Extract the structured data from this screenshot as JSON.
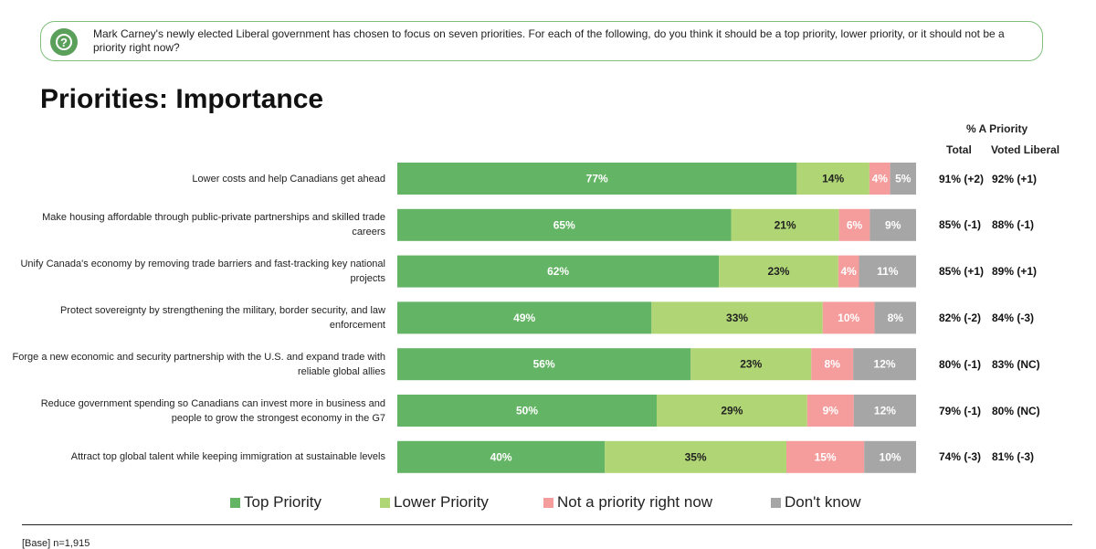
{
  "question": {
    "text": "Mark Carney's newly elected Liberal government has chosen to focus on seven priorities. For each of the following, do you think it should be a top priority, lower priority, or it should not be a priority right now?",
    "icon": "question-icon"
  },
  "colors": {
    "top": "#63b464",
    "lower": "#afd574",
    "not": "#f59c9c",
    "dk": "#a6a6a6",
    "accent": "#5aa05a"
  },
  "chart_data": {
    "type": "bar",
    "orientation": "horizontal-stacked-100",
    "title": "Priorities: Importance",
    "categories": [
      "Lower costs and help Canadians get ahead",
      "Make housing affordable through public-private partnerships and skilled trade careers",
      "Unify Canada's economy by removing trade barriers and fast-tracking key national projects",
      "Protect sovereignty by strengthening the military, border security, and law enforcement",
      "Forge a new economic and security partnership with the U.S. and expand trade with reliable global allies",
      "Reduce government spending so Canadians can invest more in business and people to grow the strongest economy in the G7",
      "Attract top global talent while keeping immigration at sustainable levels"
    ],
    "series": [
      {
        "name": "Top Priority",
        "color_key": "top",
        "label_color": "#ffffff",
        "values": [
          77,
          65,
          62,
          49,
          56,
          50,
          40
        ]
      },
      {
        "name": "Lower Priority",
        "color_key": "lower",
        "label_color": "#222222",
        "values": [
          14,
          21,
          23,
          33,
          23,
          29,
          35
        ]
      },
      {
        "name": "Not a priority right now",
        "color_key": "not",
        "label_color": "#ffffff",
        "values": [
          4,
          6,
          4,
          10,
          8,
          9,
          15
        ]
      },
      {
        "name": "Don't know",
        "color_key": "dk",
        "label_color": "#ffffff",
        "values": [
          5,
          9,
          11,
          8,
          12,
          12,
          10
        ]
      }
    ],
    "side_table": {
      "heading": "% A Priority",
      "columns": [
        "Total",
        "Voted Liberal"
      ],
      "rows": [
        [
          "91% (+2)",
          "92% (+1)"
        ],
        [
          "85% (-1)",
          "88% (-1)"
        ],
        [
          "85% (+1)",
          "89% (+1)"
        ],
        [
          "82% (-2)",
          "84% (-3)"
        ],
        [
          "80% (-1)",
          "83% (NC)"
        ],
        [
          "79% (-1)",
          "80% (NC)"
        ],
        [
          "74% (-3)",
          "81% (-3)"
        ]
      ]
    },
    "base_note": "[Base] n=1,915",
    "value_suffix": "%"
  }
}
